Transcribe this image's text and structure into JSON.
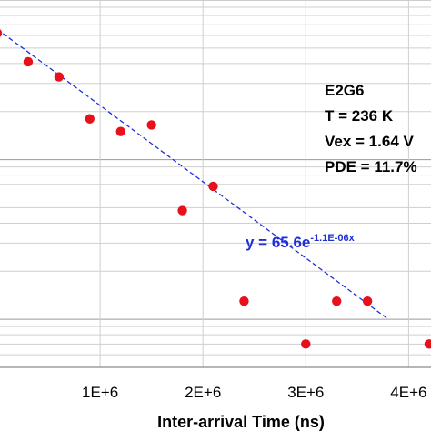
{
  "chart_data": {
    "type": "scatter",
    "xlabel": "Inter-arrival Time (ns)",
    "ylabel": "",
    "x_scale": "linear",
    "y_scale": "log",
    "xlim": [
      0,
      4200000
    ],
    "ylim": [
      0.5,
      100
    ],
    "xticks": [
      {
        "value": 1000000,
        "label": "1E+6"
      },
      {
        "value": 2000000,
        "label": "2E+6"
      },
      {
        "value": 3000000,
        "label": "3E+6"
      },
      {
        "value": 4000000,
        "label": "4E+6"
      }
    ],
    "grid": {
      "horizontal": true,
      "vertical": true
    },
    "points": [
      {
        "x": 0,
        "y": 62
      },
      {
        "x": 300000,
        "y": 41
      },
      {
        "x": 600000,
        "y": 33
      },
      {
        "x": 900000,
        "y": 18
      },
      {
        "x": 1200000,
        "y": 15
      },
      {
        "x": 1500000,
        "y": 16.5
      },
      {
        "x": 1800000,
        "y": 4.8
      },
      {
        "x": 2100000,
        "y": 6.8
      },
      {
        "x": 2400000,
        "y": 1.3
      },
      {
        "x": 3000000,
        "y": 0.7
      },
      {
        "x": 3300000,
        "y": 1.3
      },
      {
        "x": 3600000,
        "y": 1.3
      },
      {
        "x": 4200000,
        "y": 0.7
      }
    ],
    "trendline": {
      "type": "exponential",
      "a": 65.6,
      "b": -1.1e-06,
      "x_range": [
        0,
        3800000
      ]
    },
    "point_color": "#e8111b",
    "trendline_color": "#1f2fd6",
    "annotation": {
      "lines": [
        "E2G6",
        "T = 236 K",
        "Vex = 1.64 V",
        "PDE = 11.7%"
      ]
    },
    "equation": {
      "prefix": "y = 65.6e",
      "exponent": "-1.1E-06x"
    }
  }
}
